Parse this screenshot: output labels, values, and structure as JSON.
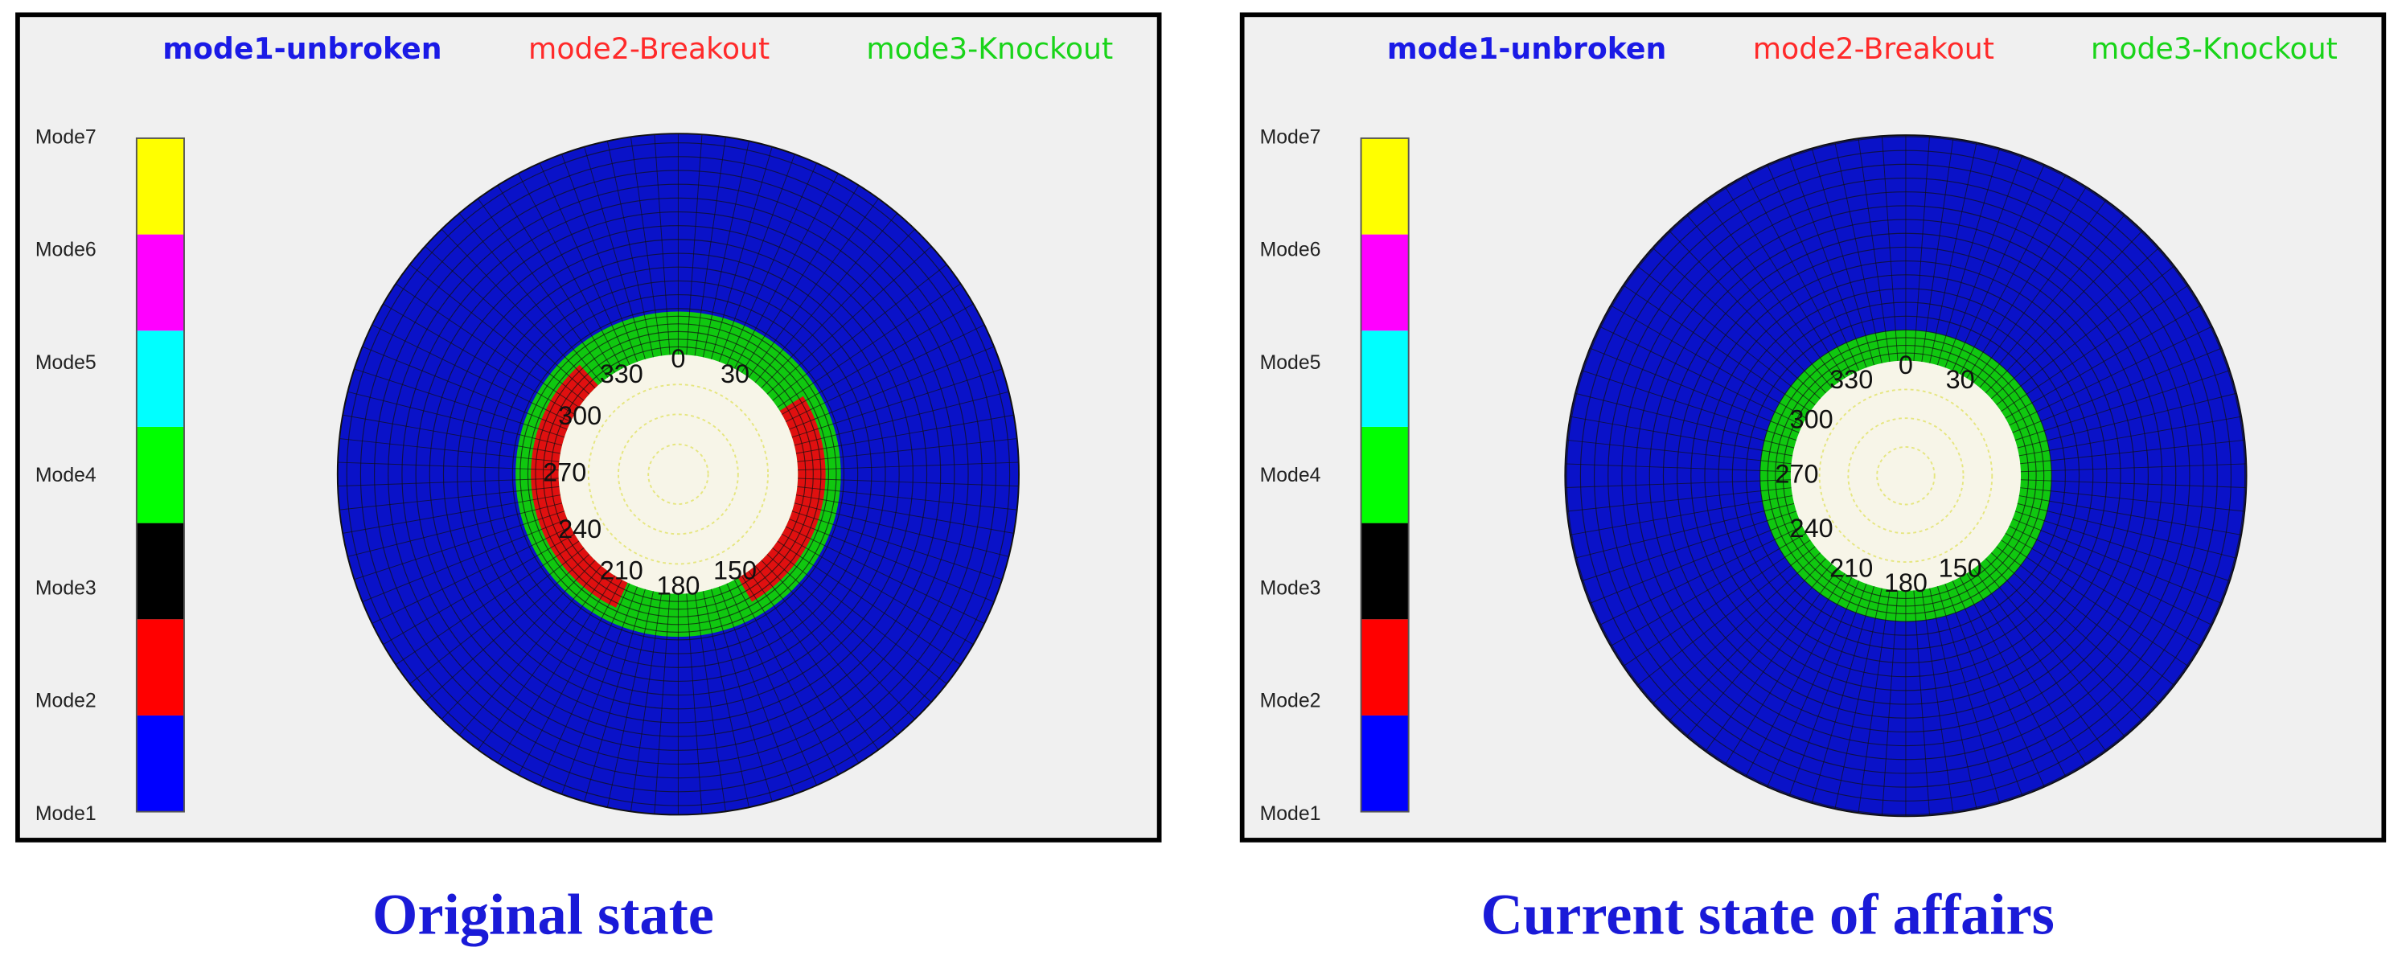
{
  "panels": [
    {
      "legend": [
        {
          "label": "mode1-unbroken",
          "color": "#1a1ae6"
        },
        {
          "label": "mode2-Breakout",
          "color": "#ff2a2a"
        },
        {
          "label": "mode3-Knockout",
          "color": "#19d419"
        }
      ],
      "colorbar": [
        {
          "label": "Mode1",
          "color": "#0000ff"
        },
        {
          "label": "Mode2",
          "color": "#ff0000"
        },
        {
          "label": "Mode3",
          "color": "#000000"
        },
        {
          "label": "Mode4",
          "color": "#00ff00"
        },
        {
          "label": "Mode5",
          "color": "#00ffff"
        },
        {
          "label": "Mode6",
          "color": "#ff00ff"
        },
        {
          "label": "Mode7",
          "color": "#ffff00"
        }
      ],
      "angle_labels": [
        "0",
        "30",
        "150",
        "180",
        "210",
        "240",
        "270",
        "300",
        "330"
      ],
      "caption": "Original state"
    },
    {
      "legend": [
        {
          "label": "mode1-unbroken",
          "color": "#1a1ae6"
        },
        {
          "label": "mode2-Breakout",
          "color": "#ff2a2a"
        },
        {
          "label": "mode3-Knockout",
          "color": "#19d419"
        }
      ],
      "colorbar": [
        {
          "label": "Mode1",
          "color": "#0000ff"
        },
        {
          "label": "Mode2",
          "color": "#ff0000"
        },
        {
          "label": "Mode3",
          "color": "#000000"
        },
        {
          "label": "Mode4",
          "color": "#00ff00"
        },
        {
          "label": "Mode5",
          "color": "#00ffff"
        },
        {
          "label": "Mode6",
          "color": "#ff00ff"
        },
        {
          "label": "Mode7",
          "color": "#ffff00"
        }
      ],
      "angle_labels": [
        "0",
        "30",
        "150",
        "180",
        "210",
        "240",
        "270",
        "300",
        "330"
      ],
      "caption": "Current state of affairs"
    }
  ]
}
